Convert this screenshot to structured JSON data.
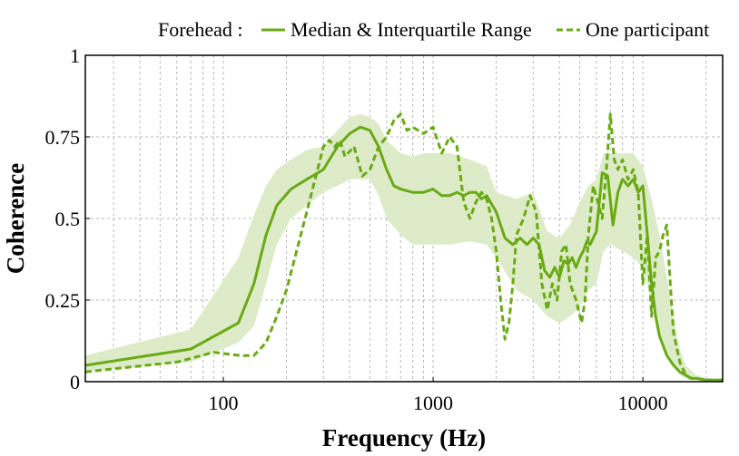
{
  "chart_data": {
    "type": "line",
    "title": "",
    "xlabel": "Frequency (Hz)",
    "ylabel": "Coherence",
    "x_scale": "log",
    "xlim": [
      22,
      24000
    ],
    "ylim": [
      0,
      1
    ],
    "grid": true,
    "legend_position": "top-right",
    "x_ticks": [
      {
        "value": 100,
        "label": "100"
      },
      {
        "value": 1000,
        "label": "1000"
      },
      {
        "value": 10000,
        "label": "10000"
      }
    ],
    "y_ticks": [
      {
        "value": 0,
        "label": "0"
      },
      {
        "value": 0.25,
        "label": "0.25"
      },
      {
        "value": 0.5,
        "label": "0.5"
      },
      {
        "value": 0.75,
        "label": "0.75"
      },
      {
        "value": 1,
        "label": "1"
      }
    ],
    "legend": {
      "group_label": "Forehead :",
      "entries": [
        {
          "name": "Median & Interquartile Range",
          "style": "solid"
        },
        {
          "name": "One participant",
          "style": "dashed"
        }
      ]
    },
    "colors": {
      "line": "#6aaa14",
      "band": "#ddebc8",
      "frame": "#000000",
      "grid": "#b8b8b8"
    },
    "series": [
      {
        "name": "Median & Interquartile Range",
        "role": "median",
        "x": [
          22,
          70,
          118,
          140,
          160,
          180,
          210,
          250,
          300,
          350,
          400,
          450,
          500,
          550,
          600,
          650,
          700,
          800,
          900,
          1000,
          1100,
          1200,
          1300,
          1400,
          1500,
          1600,
          1700,
          1800,
          2000,
          2200,
          2400,
          2600,
          2800,
          3000,
          3200,
          3400,
          3600,
          3800,
          4000,
          4200,
          4400,
          4600,
          4800,
          5000,
          5200,
          5400,
          5600,
          6000,
          6400,
          6800,
          7200,
          7600,
          8000,
          8500,
          9000,
          9500,
          10000,
          10500,
          11000,
          11500,
          12000,
          13000,
          14000,
          15000,
          16000,
          17000,
          18000,
          20000,
          24000
        ],
        "values": [
          0.05,
          0.1,
          0.18,
          0.3,
          0.45,
          0.54,
          0.59,
          0.62,
          0.65,
          0.72,
          0.76,
          0.78,
          0.77,
          0.72,
          0.65,
          0.6,
          0.59,
          0.58,
          0.58,
          0.59,
          0.57,
          0.57,
          0.58,
          0.57,
          0.58,
          0.58,
          0.56,
          0.57,
          0.52,
          0.44,
          0.42,
          0.44,
          0.42,
          0.44,
          0.42,
          0.34,
          0.32,
          0.35,
          0.32,
          0.37,
          0.36,
          0.38,
          0.35,
          0.38,
          0.4,
          0.43,
          0.42,
          0.46,
          0.64,
          0.63,
          0.48,
          0.58,
          0.62,
          0.6,
          0.62,
          0.58,
          0.6,
          0.45,
          0.3,
          0.2,
          0.14,
          0.08,
          0.05,
          0.03,
          0.02,
          0.01,
          0.01,
          0.005,
          0.005
        ]
      },
      {
        "name": "Interquartile Range upper",
        "role": "band_upper",
        "x": [
          22,
          70,
          118,
          140,
          160,
          180,
          210,
          250,
          300,
          350,
          400,
          450,
          500,
          550,
          600,
          700,
          800,
          900,
          1000,
          1200,
          1500,
          1800,
          2000,
          2500,
          3000,
          3500,
          4000,
          4500,
          5000,
          5500,
          6000,
          6500,
          7000,
          8000,
          9000,
          10000,
          11000,
          12000,
          13000,
          14000,
          15000,
          16000,
          18000,
          20000,
          24000
        ],
        "values": [
          0.08,
          0.16,
          0.38,
          0.51,
          0.6,
          0.65,
          0.68,
          0.71,
          0.72,
          0.77,
          0.81,
          0.82,
          0.81,
          0.79,
          0.74,
          0.7,
          0.69,
          0.7,
          0.7,
          0.7,
          0.68,
          0.66,
          0.58,
          0.56,
          0.58,
          0.46,
          0.44,
          0.48,
          0.55,
          0.6,
          0.62,
          0.7,
          0.7,
          0.7,
          0.7,
          0.66,
          0.56,
          0.45,
          0.32,
          0.2,
          0.1,
          0.05,
          0.02,
          0.01,
          0.01
        ]
      },
      {
        "name": "Interquartile Range lower",
        "role": "band_lower",
        "x": [
          22,
          70,
          118,
          140,
          160,
          180,
          210,
          250,
          300,
          350,
          400,
          450,
          500,
          550,
          600,
          700,
          800,
          900,
          1000,
          1200,
          1500,
          1800,
          2000,
          2500,
          3000,
          3500,
          4000,
          4500,
          5000,
          5500,
          6000,
          6500,
          7000,
          8000,
          9000,
          10000,
          11000,
          12000,
          13000,
          14000,
          15000,
          16000,
          18000,
          20000,
          24000
        ],
        "values": [
          0.03,
          0.06,
          0.12,
          0.17,
          0.3,
          0.42,
          0.5,
          0.54,
          0.58,
          0.6,
          0.62,
          0.62,
          0.62,
          0.57,
          0.5,
          0.45,
          0.42,
          0.42,
          0.42,
          0.42,
          0.43,
          0.42,
          0.38,
          0.28,
          0.25,
          0.2,
          0.18,
          0.2,
          0.23,
          0.28,
          0.3,
          0.4,
          0.42,
          0.4,
          0.38,
          0.35,
          0.25,
          0.14,
          0.08,
          0.05,
          0.02,
          0.01,
          0.005,
          0.003,
          0.003
        ]
      },
      {
        "name": "One participant",
        "role": "participant",
        "x": [
          22,
          60,
          90,
          120,
          140,
          160,
          180,
          200,
          250,
          300,
          320,
          340,
          360,
          380,
          420,
          460,
          500,
          550,
          600,
          650,
          700,
          750,
          800,
          900,
          1000,
          1100,
          1200,
          1300,
          1400,
          1500,
          1600,
          1700,
          1800,
          1900,
          2000,
          2100,
          2200,
          2300,
          2400,
          2500,
          2700,
          2900,
          3100,
          3300,
          3500,
          3700,
          3900,
          4100,
          4300,
          4500,
          4800,
          5100,
          5300,
          5500,
          5800,
          6100,
          6400,
          6700,
          7000,
          7300,
          7600,
          8000,
          8500,
          9000,
          9500,
          10000,
          10500,
          11000,
          11500,
          12000,
          12500,
          13000,
          13500,
          14000,
          15000,
          16000,
          17000,
          18000,
          20000,
          24000
        ],
        "values": [
          0.03,
          0.06,
          0.09,
          0.08,
          0.08,
          0.12,
          0.2,
          0.28,
          0.52,
          0.72,
          0.74,
          0.72,
          0.74,
          0.69,
          0.72,
          0.63,
          0.65,
          0.72,
          0.75,
          0.8,
          0.82,
          0.77,
          0.78,
          0.76,
          0.78,
          0.7,
          0.75,
          0.72,
          0.55,
          0.5,
          0.55,
          0.58,
          0.56,
          0.5,
          0.4,
          0.25,
          0.13,
          0.18,
          0.3,
          0.45,
          0.5,
          0.57,
          0.52,
          0.3,
          0.22,
          0.3,
          0.25,
          0.4,
          0.42,
          0.3,
          0.25,
          0.18,
          0.25,
          0.45,
          0.6,
          0.55,
          0.5,
          0.65,
          0.82,
          0.68,
          0.65,
          0.68,
          0.62,
          0.65,
          0.58,
          0.3,
          0.45,
          0.2,
          0.38,
          0.4,
          0.45,
          0.48,
          0.3,
          0.15,
          0.06,
          0.02,
          0.01,
          0.01,
          0.005,
          0.005
        ]
      }
    ]
  }
}
